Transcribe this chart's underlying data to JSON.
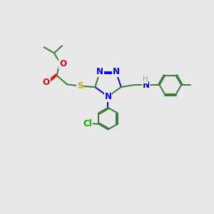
{
  "bg_color": "#e8e8e8",
  "bond_color": "#3a7a3a",
  "bond_width": 1.4,
  "atom_colors": {
    "N": "#0000ee",
    "O": "#ee0000",
    "S": "#bbaa00",
    "Cl": "#00aa00",
    "H": "#8aabab",
    "C": "#3a7a3a"
  },
  "font_size": 8.5,
  "fig_size": [
    3.0,
    3.0
  ],
  "dpi": 100,
  "xlim": [
    0,
    10
  ],
  "ylim": [
    0,
    10
  ]
}
